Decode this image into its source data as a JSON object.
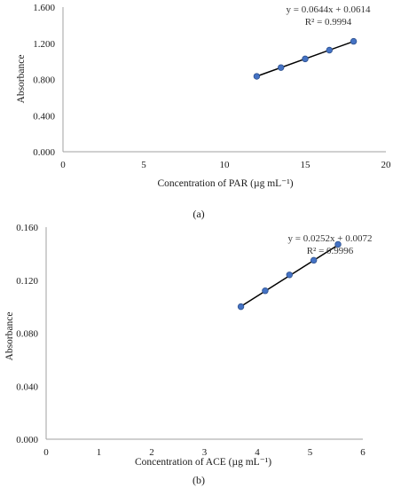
{
  "chart_data": [
    {
      "type": "scatter",
      "panel_label": "(a)",
      "xlabel": "Concentration of PAR (µg mL⁻¹)",
      "ylabel": "Absorbance",
      "xlim": [
        0,
        20
      ],
      "ylim": [
        0,
        1.6
      ],
      "x_ticks": [
        0,
        5,
        10,
        15,
        20
      ],
      "y_ticks": [
        "0.000",
        "0.400",
        "0.800",
        "1.200",
        "1.600"
      ],
      "y_tick_values": [
        0,
        0.4,
        0.8,
        1.2,
        1.6
      ],
      "points": {
        "x": [
          12,
          13.5,
          15,
          16.5,
          18
        ],
        "y": [
          0.834,
          0.931,
          1.027,
          1.124,
          1.221
        ]
      },
      "trendline": {
        "slope": 0.0644,
        "intercept": 0.0614
      },
      "equation": "y = 0.0644x + 0.0614",
      "r_squared": "R² = 0.9994",
      "grid": false,
      "marker_color": "#4472c4",
      "line_color": "#000000"
    },
    {
      "type": "scatter",
      "panel_label": "(b)",
      "xlabel": "Concentration of  ACE (µg mL⁻¹)",
      "ylabel": "Absorbance",
      "xlim": [
        0,
        6
      ],
      "ylim": [
        0,
        0.16
      ],
      "x_ticks": [
        0,
        1,
        2,
        3,
        4,
        5,
        6
      ],
      "y_ticks": [
        "0.000",
        "0.040",
        "0.080",
        "0.120",
        "0.160"
      ],
      "y_tick_values": [
        0,
        0.04,
        0.08,
        0.12,
        0.16
      ],
      "points": {
        "x": [
          3.69,
          4.15,
          4.61,
          5.07,
          5.53
        ],
        "y": [
          0.1,
          0.112,
          0.124,
          0.135,
          0.147
        ]
      },
      "trendline": {
        "slope": 0.0252,
        "intercept": 0.0072
      },
      "equation": "y = 0.0252x + 0.0072",
      "r_squared": "R² = 0.9996",
      "grid": false,
      "marker_color": "#4472c4",
      "line_color": "#000000"
    }
  ]
}
